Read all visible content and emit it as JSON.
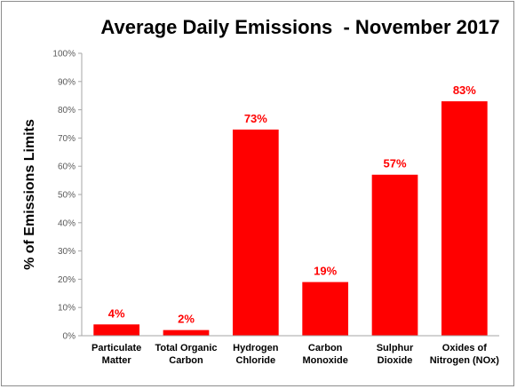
{
  "chart_data": {
    "type": "bar",
    "title": "Average Daily Emissions  - November 2017",
    "xlabel": "",
    "ylabel": "% of Emissions Limits",
    "categories": [
      [
        "Particulate",
        "Matter"
      ],
      [
        "Total Organic",
        "Carbon"
      ],
      [
        "Hydrogen",
        "Chloride"
      ],
      [
        "Carbon",
        "Monoxide"
      ],
      [
        "Sulphur",
        "Dioxide"
      ],
      [
        "Oxides of",
        "Nitrogen (NOx)"
      ]
    ],
    "values": [
      4,
      2,
      73,
      19,
      57,
      83
    ],
    "data_labels": [
      "4%",
      "2%",
      "73%",
      "19%",
      "57%",
      "83%"
    ],
    "ylim": [
      0,
      100
    ],
    "yticks": [
      0,
      10,
      20,
      30,
      40,
      50,
      60,
      70,
      80,
      90,
      100
    ],
    "ytick_labels": [
      "0%",
      "10%",
      "20%",
      "30%",
      "40%",
      "50%",
      "60%",
      "70%",
      "80%",
      "90%",
      "100%"
    ],
    "grid": false,
    "legend": "none",
    "colors": {
      "bar": "#ff0000",
      "data_label": "#ff0000",
      "axis": "#a6a6a6"
    }
  }
}
